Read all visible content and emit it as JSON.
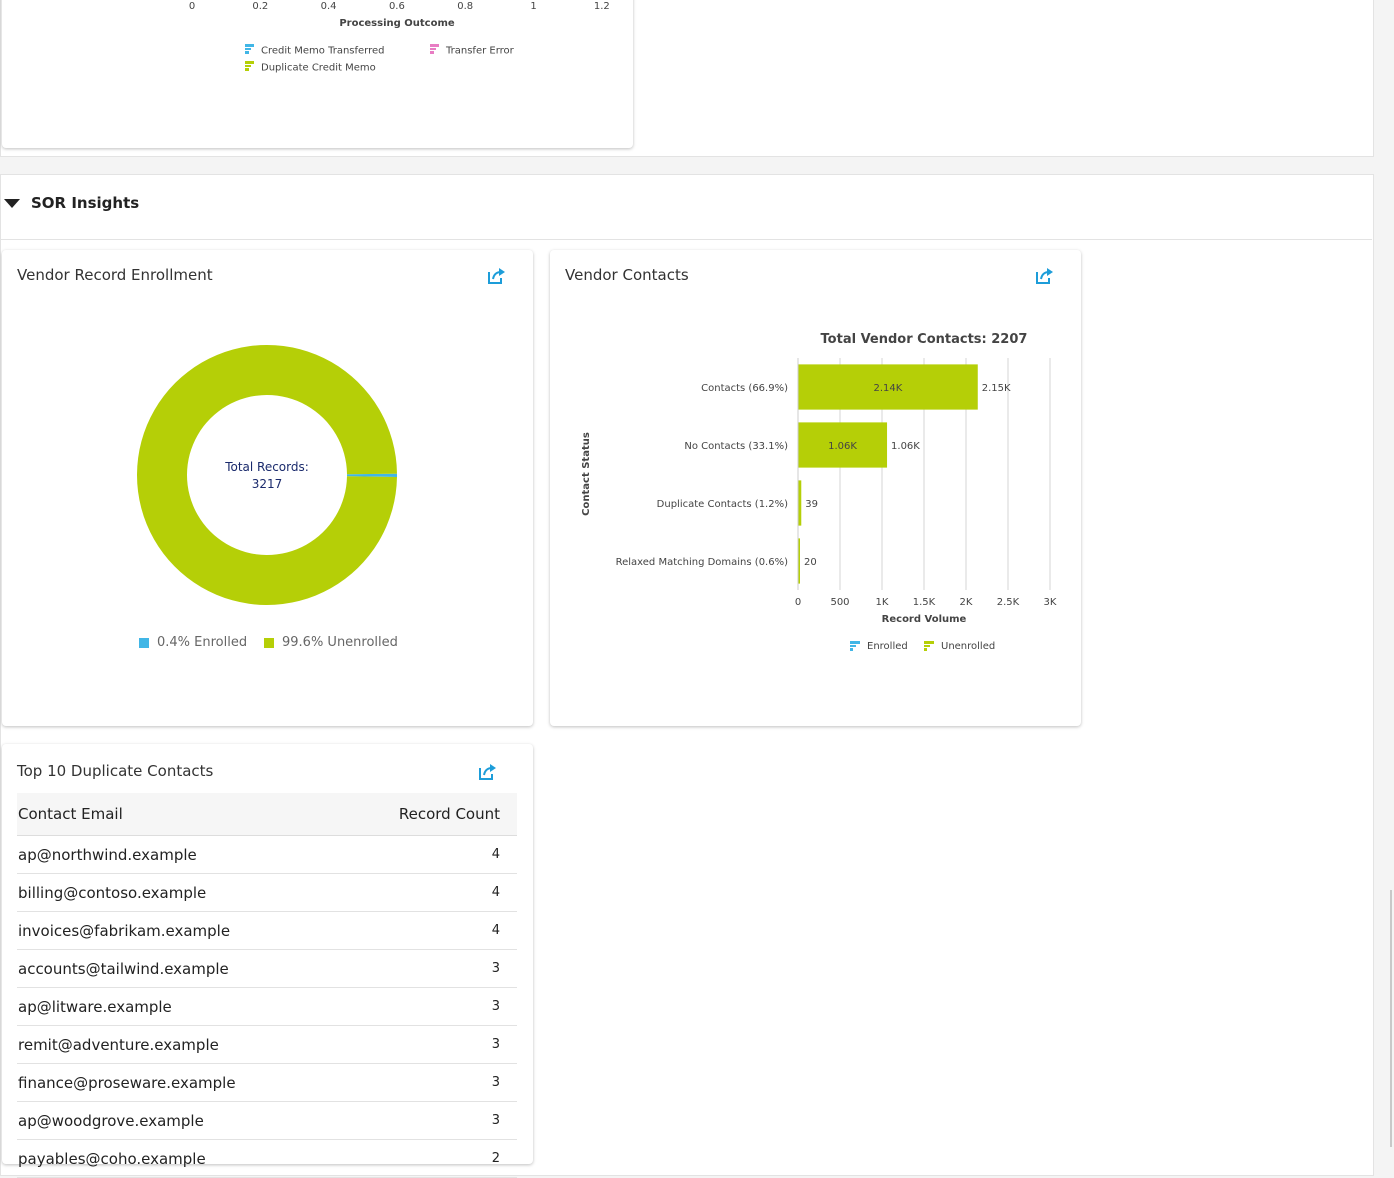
{
  "top_chart": {
    "x_ticks": [
      "0",
      "0.2",
      "0.4",
      "0.6",
      "0.8",
      "1",
      "1.2"
    ],
    "xlabel": "Processing Outcome",
    "legend": [
      {
        "label": "Credit Memo Transferred",
        "color": "#41b6e6"
      },
      {
        "label": "Transfer Error",
        "color": "#e87cc3"
      },
      {
        "label": "Duplicate Credit Memo",
        "color": "#b5cf07"
      }
    ]
  },
  "section": {
    "title": "SOR Insights"
  },
  "enrollment": {
    "title": "Vendor Record Enrollment",
    "center_label": "Total Records:",
    "center_value": "3217",
    "legend": [
      {
        "label": "0.4% Enrolled",
        "color": "#41b6e6"
      },
      {
        "label": "99.6% Unenrolled",
        "color": "#b5cf07"
      }
    ]
  },
  "contacts": {
    "title": "Vendor Contacts"
  },
  "duplicates": {
    "title": "Top 10 Duplicate Contacts",
    "columns": [
      "Contact Email",
      "Record Count"
    ],
    "rows": [
      {
        "email": "ap@northwind.example",
        "count": "4"
      },
      {
        "email": "billing@contoso.example",
        "count": "4"
      },
      {
        "email": "invoices@fabrikam.example",
        "count": "4"
      },
      {
        "email": "accounts@tailwind.example",
        "count": "3"
      },
      {
        "email": "ap@litware.example",
        "count": "3"
      },
      {
        "email": "remit@adventure.example",
        "count": "3"
      },
      {
        "email": "finance@proseware.example",
        "count": "3"
      },
      {
        "email": "ap@woodgrove.example",
        "count": "3"
      },
      {
        "email": "payables@coho.example",
        "count": "2"
      }
    ]
  },
  "chart_data": [
    {
      "type": "pie",
      "title": "",
      "center_text": "Total Records: 3217",
      "labels": [
        "Enrolled",
        "Unenrolled"
      ],
      "values": [
        0.4,
        99.6
      ],
      "colors": [
        "#41b6e6",
        "#b5cf07"
      ],
      "legend": "bottom"
    },
    {
      "type": "bar",
      "orientation": "horizontal",
      "title": "Total Vendor Contacts: 2207",
      "xlabel": "Record Volume",
      "ylabel": "Contact Status",
      "categories": [
        "Contacts (66.9%)",
        "No Contacts (33.1%)",
        "Duplicate Contacts (1.2%)",
        "Relaxed Matching Domains (0.6%)"
      ],
      "xlim": [
        0,
        3000
      ],
      "x_ticks": [
        "0",
        "500",
        "1K",
        "1.5K",
        "2K",
        "2.5K",
        "3K"
      ],
      "series": [
        {
          "name": "Enrolled",
          "color": "#41b6e6",
          "values": [
            10,
            0,
            0,
            0
          ]
        },
        {
          "name": "Unenrolled",
          "color": "#b5cf07",
          "values": [
            2140,
            1060,
            39,
            20
          ],
          "labels": [
            "2.14K",
            "1.06K",
            "",
            ""
          ]
        }
      ],
      "total_labels": [
        "2.15K",
        "1.06K",
        "39",
        "20"
      ],
      "grid": true,
      "legend": "bottom"
    }
  ]
}
